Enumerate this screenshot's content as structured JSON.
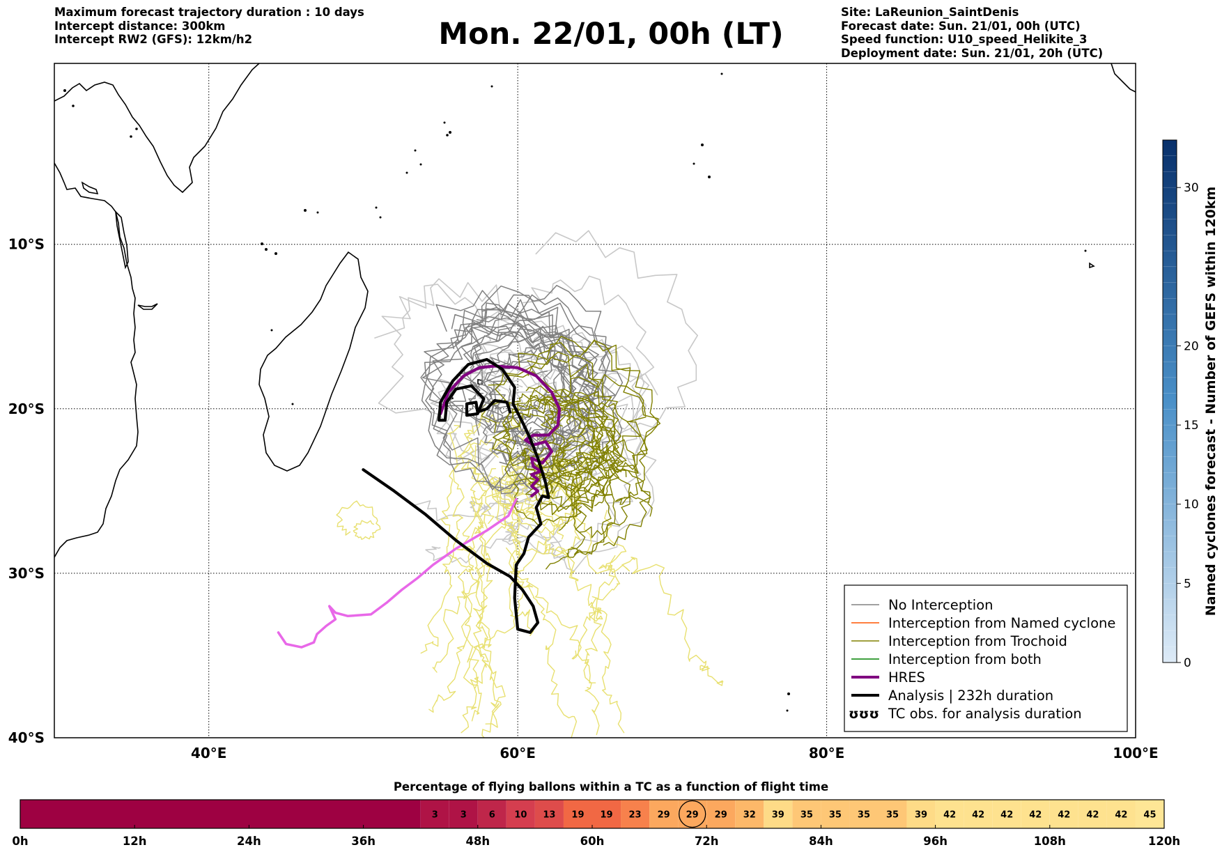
{
  "header_left": [
    "Maximum forecast trajectory duration : 10 days",
    "Intercept distance: 300km",
    "Intercept RW2 (GFS):  12km/h2"
  ],
  "header_right": [
    "Site: LaReunion_SaintDenis",
    "Forecast date: Sun. 21/01, 00h (UTC)",
    "Speed function: U10_speed_Helikite_3",
    "Deployment date: Sun. 21/01, 20h (UTC)"
  ],
  "title": "Mon. 22/01, 00h (LT)",
  "map": {
    "lon_range": [
      30,
      100
    ],
    "lat_range": [
      -40,
      1
    ],
    "lon_ticks": [
      {
        "v": 40,
        "label": "40°E"
      },
      {
        "v": 60,
        "label": "60°E"
      },
      {
        "v": 80,
        "label": "80°E"
      },
      {
        "v": 100,
        "label": "100°E"
      }
    ],
    "lat_ticks": [
      {
        "v": -10,
        "label": "10°S"
      },
      {
        "v": -20,
        "label": "20°S"
      },
      {
        "v": -30,
        "label": "30°S"
      },
      {
        "v": -40,
        "label": "40°S"
      }
    ],
    "grid": "dotted"
  },
  "colorbar": {
    "label": "Named cyclones forecast - Number of GEFS within 120km",
    "min": 0,
    "max": 33,
    "ticks": [
      0,
      5,
      10,
      15,
      20,
      30
    ],
    "colors": [
      "#deebf7",
      "#08306b"
    ]
  },
  "legend": {
    "placement": "lower-right",
    "entries": [
      {
        "label": "No Interception",
        "color": "#808080",
        "width": 1.5
      },
      {
        "label": "Interception from Named cyclone",
        "color": "#ff5500",
        "width": 1.5
      },
      {
        "label": "Interception from Trochoid",
        "color": "#808000",
        "width": 1.5
      },
      {
        "label": "Interception from both",
        "color": "#008000",
        "width": 1.5
      },
      {
        "label": "HRES",
        "color": "#800080",
        "width": 4
      },
      {
        "label": "Analysis | 232h duration",
        "color": "#000000",
        "width": 4
      },
      {
        "label": "TC obs. for analysis duration",
        "icon": "tc-symbol-icon",
        "symbols": "ʊʊʊ"
      }
    ]
  },
  "chart_data": {
    "type": "line",
    "coords": "lon/lat degrees",
    "analysis": [
      [
        50,
        -23.7
      ],
      [
        52,
        -25
      ],
      [
        54,
        -26.4
      ],
      [
        56,
        -28
      ],
      [
        58,
        -29.4
      ],
      [
        59.5,
        -30.2
      ],
      [
        60.3,
        -31
      ],
      [
        61,
        -32
      ],
      [
        61.3,
        -33
      ],
      [
        60.8,
        -33.6
      ],
      [
        60,
        -33.4
      ],
      [
        59.8,
        -31.5
      ],
      [
        59.9,
        -29.5
      ],
      [
        60.4,
        -28.8
      ],
      [
        60.7,
        -27.8
      ],
      [
        61.5,
        -27
      ],
      [
        61.2,
        -26
      ],
      [
        61.6,
        -25.3
      ],
      [
        62,
        -25.4
      ],
      [
        61.8,
        -24.5
      ],
      [
        61.3,
        -23
      ],
      [
        60.8,
        -21.8
      ],
      [
        60.3,
        -20.8
      ],
      [
        59.7,
        -19.7
      ],
      [
        59.8,
        -18.7
      ],
      [
        59,
        -17.6
      ],
      [
        58,
        -17
      ],
      [
        56.8,
        -17.3
      ],
      [
        55.8,
        -18.3
      ],
      [
        55,
        -19.6
      ],
      [
        54.9,
        -20.7
      ],
      [
        55.3,
        -20.7
      ],
      [
        55.4,
        -19.6
      ],
      [
        56,
        -18.8
      ],
      [
        57,
        -18.6
      ],
      [
        57.8,
        -19.4
      ],
      [
        57.4,
        -20.3
      ],
      [
        56.7,
        -20.4
      ],
      [
        56.7,
        -19.7
      ],
      [
        57.3,
        -19.6
      ],
      [
        57.4,
        -20.2
      ],
      [
        58,
        -20
      ],
      [
        58.5,
        -19.5
      ],
      [
        59.3,
        -19.6
      ],
      [
        59.5,
        -20.2
      ]
    ],
    "hres": [
      [
        55,
        -20.3
      ],
      [
        55.5,
        -19
      ],
      [
        56.5,
        -18
      ],
      [
        57.5,
        -17.5
      ],
      [
        58.5,
        -17.4
      ],
      [
        60,
        -17.5
      ],
      [
        61.2,
        -18
      ],
      [
        62.2,
        -19
      ],
      [
        62.7,
        -20
      ],
      [
        62.6,
        -21
      ],
      [
        62,
        -21.6
      ],
      [
        61,
        -21.6
      ],
      [
        60.5,
        -21.9
      ],
      [
        61,
        -22.2
      ],
      [
        61.8,
        -22
      ],
      [
        62.2,
        -22.6
      ],
      [
        61.6,
        -23.3
      ],
      [
        60.9,
        -23
      ],
      [
        61,
        -23.5
      ],
      [
        61.5,
        -23.8
      ],
      [
        60.9,
        -24
      ],
      [
        61.3,
        -24.3
      ],
      [
        60.9,
        -24.7
      ],
      [
        61.3,
        -25
      ],
      [
        60.9,
        -25.3
      ]
    ],
    "hres_late": [
      [
        59.9,
        -25.5
      ],
      [
        59.4,
        -26.5
      ],
      [
        58,
        -27.4
      ],
      [
        56,
        -28.5
      ],
      [
        54.5,
        -29.5
      ],
      [
        53.5,
        -30.3
      ],
      [
        52.5,
        -31
      ],
      [
        51.5,
        -31.8
      ],
      [
        50.5,
        -32.5
      ],
      [
        49,
        -32.6
      ],
      [
        48.2,
        -32.4
      ],
      [
        47.8,
        -32
      ],
      [
        48.2,
        -32.8
      ],
      [
        47.6,
        -33.2
      ],
      [
        47,
        -33.7
      ],
      [
        46.8,
        -34.2
      ],
      [
        46,
        -34.5
      ],
      [
        45,
        -34.3
      ],
      [
        44.5,
        -33.6
      ]
    ],
    "tc_obs": []
  },
  "bottom_bar": {
    "title": "Percentage of flying ballons within a TC as a function of flight time",
    "time_ticks": [
      "0h",
      "12h",
      "24h",
      "36h",
      "48h",
      "60h",
      "72h",
      "84h",
      "96h",
      "108h",
      "120h"
    ],
    "cells_start_hour": 42,
    "cell_hours": 3,
    "values": [
      3,
      3,
      6,
      10,
      13,
      19,
      19,
      23,
      29,
      29,
      29,
      32,
      39,
      35,
      35,
      35,
      35,
      39,
      42,
      42,
      42,
      42,
      42,
      42,
      42,
      45
    ],
    "highlight_index": 9,
    "zero_color": "#9e0142"
  }
}
